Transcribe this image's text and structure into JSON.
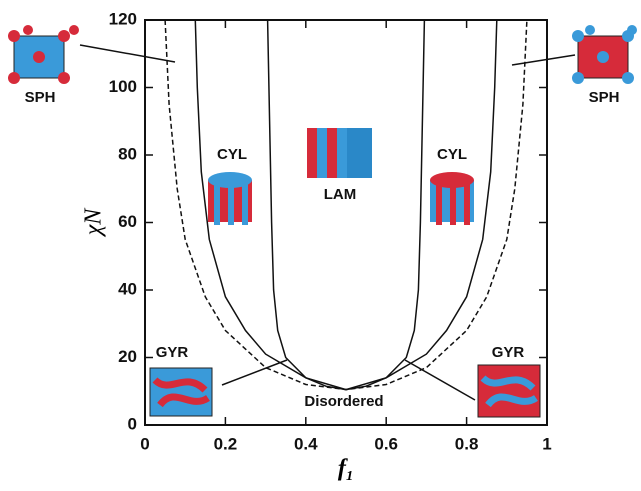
{
  "chart_data": {
    "type": "line",
    "xlabel": "f₁",
    "ylabel": "χN",
    "xlim": [
      0,
      1
    ],
    "ylim": [
      0,
      120
    ],
    "xticks": [
      0,
      0.2,
      0.4,
      0.6,
      0.8,
      1
    ],
    "yticks": [
      0,
      20,
      40,
      60,
      80,
      100,
      120
    ],
    "annotations": [
      "SPH",
      "SPH",
      "CYL",
      "CYL",
      "LAM",
      "GYR",
      "GYR",
      "Disordered"
    ],
    "series": [
      {
        "color": "#111111",
        "style": "dashed",
        "x": [
          0.05,
          0.06,
          0.08,
          0.1,
          0.15,
          0.2,
          0.3,
          0.4,
          0.5,
          0.6,
          0.7,
          0.8,
          0.85,
          0.9,
          0.92,
          0.94,
          0.95
        ],
        "values": [
          120,
          95,
          70,
          55,
          38,
          28,
          17,
          12,
          10.5,
          12,
          17,
          28,
          38,
          55,
          70,
          95,
          120
        ]
      },
      {
        "color": "#111111",
        "style": "solid",
        "x": [
          0.125,
          0.13,
          0.14,
          0.16,
          0.2,
          0.25,
          0.3,
          0.4,
          0.5,
          0.6,
          0.7,
          0.75,
          0.8,
          0.84,
          0.86,
          0.87,
          0.875
        ],
        "values": [
          120,
          100,
          75,
          55,
          38,
          28,
          21,
          14,
          10.5,
          14,
          21,
          28,
          38,
          55,
          75,
          100,
          120
        ]
      },
      {
        "color": "#111111",
        "style": "solid",
        "x": [
          0.305,
          0.31,
          0.315,
          0.32,
          0.33,
          0.35,
          0.4,
          0.45,
          0.5,
          0.55,
          0.6,
          0.65,
          0.67,
          0.68,
          0.685,
          0.69,
          0.695
        ],
        "values": [
          120,
          90,
          60,
          40,
          28,
          20,
          14,
          11.5,
          10.5,
          11.5,
          14,
          20,
          28,
          40,
          60,
          90,
          120
        ]
      }
    ]
  }
}
